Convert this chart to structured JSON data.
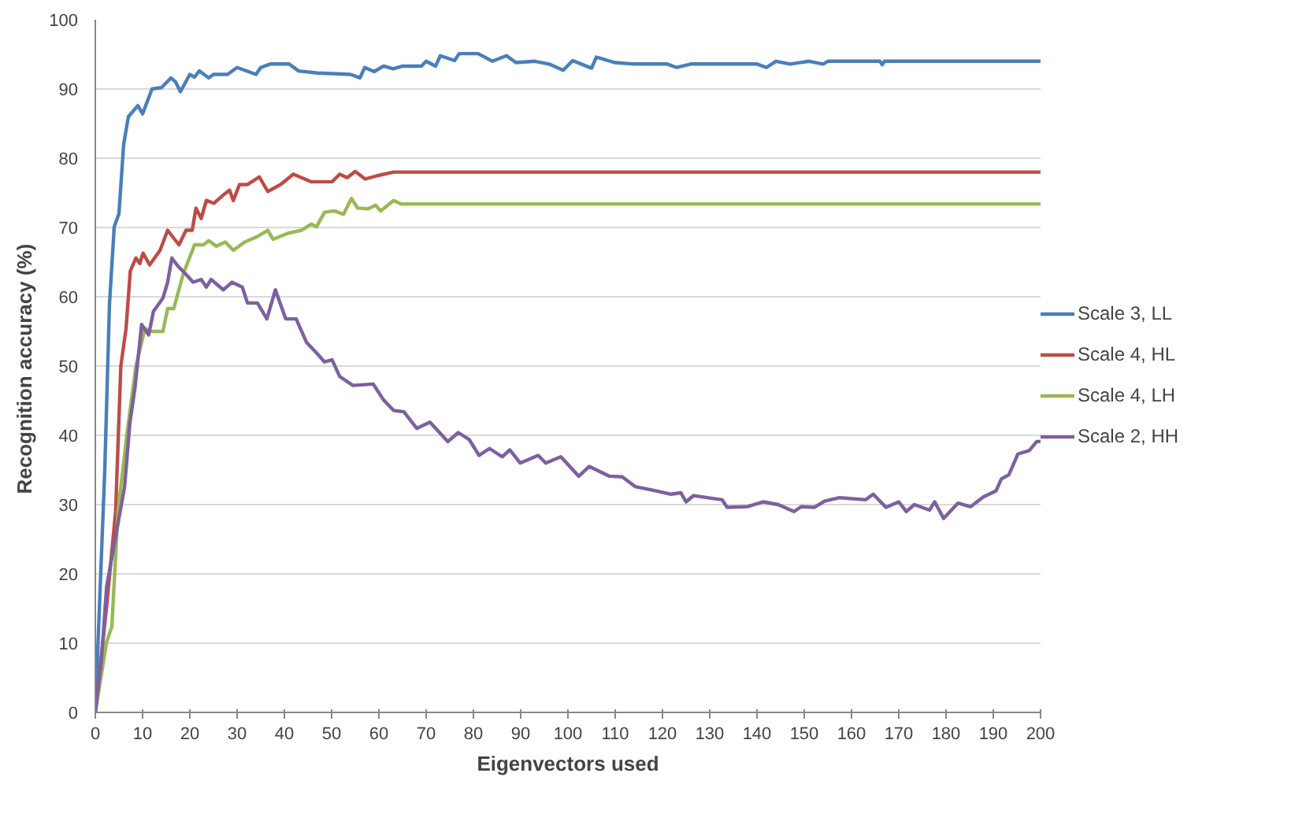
{
  "chart_data": {
    "type": "line",
    "xlabel": "Eigenvectors used",
    "ylabel": "Recognition  accuracy (%)",
    "xlim": [
      0,
      200
    ],
    "ylim": [
      0,
      100
    ],
    "xticks": [
      0,
      10,
      20,
      30,
      40,
      50,
      60,
      70,
      80,
      90,
      100,
      110,
      120,
      130,
      140,
      150,
      160,
      170,
      180,
      190,
      200
    ],
    "yticks": [
      0,
      10,
      20,
      30,
      40,
      50,
      60,
      70,
      80,
      90,
      100
    ],
    "grid": "y",
    "legend": "right",
    "marker": "none",
    "line_style": "solid",
    "series": [
      {
        "name": "Scale 3, LL",
        "color": "#4a7ebb",
        "x": [
          0,
          2,
          3,
          4,
          5,
          6,
          7,
          9,
          10,
          12,
          14,
          16,
          17,
          18,
          20,
          21,
          22,
          24,
          25,
          28,
          30,
          34,
          35,
          37,
          41,
          43,
          47,
          54,
          56,
          57,
          59,
          61,
          63,
          65,
          69,
          70,
          72,
          73,
          76,
          77,
          81,
          84,
          87,
          89,
          93,
          96,
          99,
          101,
          105,
          106,
          110,
          114,
          121,
          123,
          126,
          140,
          142,
          144,
          147,
          151,
          154,
          155,
          166,
          166.5,
          167,
          200
        ],
        "values": [
          0,
          35,
          59,
          70.1,
          72,
          82,
          86,
          87.6,
          86.4,
          90,
          90.2,
          91.6,
          91,
          89.6,
          92.1,
          91.7,
          92.6,
          91.6,
          92.1,
          92.1,
          93.1,
          92.1,
          93.1,
          93.6,
          93.6,
          92.6,
          92.3,
          92.1,
          91.6,
          93.1,
          92.5,
          93.3,
          92.9,
          93.3,
          93.3,
          94,
          93.3,
          94.8,
          94.1,
          95.1,
          95.1,
          94,
          94.8,
          93.8,
          94,
          93.6,
          92.7,
          94.1,
          93,
          94.6,
          93.8,
          93.6,
          93.6,
          93.1,
          93.6,
          93.6,
          93.1,
          94,
          93.6,
          94,
          93.6,
          94,
          94,
          93.5,
          94,
          94
        ]
      },
      {
        "name": "Scale 4, HL",
        "color": "#be4b48",
        "x": [
          0,
          2.4,
          4.3,
          5.4,
          6.5,
          7.4,
          8.6,
          9.4,
          10.1,
          11.5,
          13.7,
          15.3,
          17.7,
          19.2,
          20.5,
          21.3,
          22.4,
          23.5,
          25.1,
          27.1,
          28.4,
          29.2,
          30.5,
          32.2,
          34.7,
          36.5,
          39.2,
          41.9,
          45.7,
          50.1,
          51.7,
          53.3,
          55,
          57.1,
          59.8,
          63.1,
          200
        ],
        "values": [
          0,
          15.4,
          29,
          50,
          55.4,
          63.7,
          65.6,
          64.8,
          66.3,
          64.6,
          66.7,
          69.6,
          67.5,
          69.6,
          69.6,
          72.8,
          71.3,
          73.9,
          73.5,
          74.7,
          75.4,
          73.9,
          76.2,
          76.2,
          77.3,
          75.2,
          76.2,
          77.7,
          76.6,
          76.6,
          77.7,
          77.2,
          78.1,
          77,
          77.5,
          78,
          78
        ]
      },
      {
        "name": "Scale 4, LH",
        "color": "#98b954",
        "x": [
          0,
          2.4,
          3.5,
          4.8,
          6.7,
          8.6,
          10.5,
          12.1,
          14.3,
          15.3,
          16.6,
          18.6,
          21,
          22.9,
          24,
          25.6,
          27.5,
          29.2,
          31.6,
          34.3,
          36.5,
          37.6,
          40.9,
          43.6,
          45.7,
          46.8,
          48.5,
          50.6,
          52.5,
          54.2,
          55.5,
          57.7,
          59.3,
          60.4,
          63.1,
          64.7,
          200
        ],
        "values": [
          0,
          10.2,
          12.4,
          29,
          40.2,
          50,
          55.4,
          55,
          55,
          58.3,
          58.3,
          63.3,
          67.5,
          67.5,
          68.1,
          67.3,
          67.9,
          66.7,
          67.9,
          68.7,
          69.6,
          68.3,
          69.2,
          69.6,
          70.5,
          70.1,
          72.2,
          72.4,
          71.9,
          74.2,
          72.8,
          72.7,
          73.2,
          72.4,
          73.9,
          73.4,
          73.4
        ]
      },
      {
        "name": "Scale 2, HH",
        "color": "#7d60a0",
        "x": [
          0,
          1.3,
          2.4,
          4.6,
          6.2,
          7.3,
          8.4,
          9.8,
          11.3,
          12.3,
          14.3,
          15.3,
          16.2,
          17.5,
          19.1,
          20.7,
          22.4,
          23.5,
          24.5,
          27.1,
          28.9,
          31.1,
          32.2,
          34.3,
          36.3,
          38.1,
          40.3,
          42.5,
          44.7,
          46.8,
          48.5,
          50.1,
          51.7,
          54.5,
          58.8,
          61,
          63.1,
          65.3,
          68,
          70.8,
          74.6,
          76.8,
          79.1,
          81.2,
          83.4,
          86.1,
          87.7,
          89.9,
          93.7,
          95.3,
          98.5,
          102.3,
          104.5,
          108.8,
          111.5,
          114.2,
          118.5,
          121.8,
          123.9,
          125,
          126.6,
          132.6,
          133.7,
          138,
          141.3,
          144.5,
          147.8,
          149.4,
          152.1,
          154.3,
          157.5,
          163,
          164.6,
          167.3,
          170,
          171.6,
          173.3,
          176.5,
          177.6,
          179.5,
          182.5,
          185.2,
          187.9,
          190.6,
          191.7,
          193.3,
          195.2,
          197.6,
          199.2,
          200
        ],
        "values": [
          0,
          7.6,
          18.2,
          26.5,
          32.6,
          41.7,
          46.9,
          56,
          54.5,
          57.9,
          59.8,
          62.1,
          65.6,
          64.4,
          63.3,
          62.1,
          62.5,
          61.4,
          62.5,
          61,
          62.1,
          61.4,
          59.1,
          59.1,
          56.8,
          61,
          56.8,
          56.8,
          53.4,
          51.9,
          50.6,
          50.9,
          48.5,
          47.2,
          47.4,
          45.1,
          43.6,
          43.4,
          41,
          41.9,
          39.1,
          40.4,
          39.4,
          37.1,
          38.1,
          36.9,
          37.9,
          36,
          37.1,
          36,
          36.9,
          34.1,
          35.5,
          34.1,
          34,
          32.6,
          32,
          31.5,
          31.7,
          30.4,
          31.3,
          30.7,
          29.6,
          29.7,
          30.4,
          30,
          29,
          29.7,
          29.6,
          30.5,
          31,
          30.7,
          31.5,
          29.6,
          30.4,
          29,
          30,
          29.2,
          30.4,
          28,
          30.2,
          29.7,
          31.1,
          32,
          33.7,
          34.3,
          37.3,
          37.8,
          39.1,
          39.1
        ]
      }
    ]
  }
}
